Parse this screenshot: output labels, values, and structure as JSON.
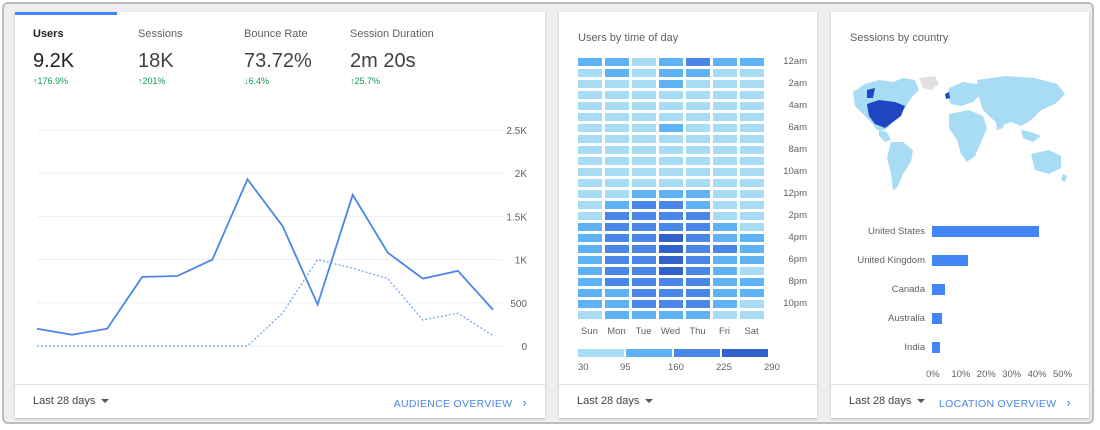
{
  "overview": {
    "tabs": [
      {
        "label": "Users",
        "value": "9.2K",
        "change": "176.9%",
        "direction": "up"
      },
      {
        "label": "Sessions",
        "value": "18K",
        "change": "201%",
        "direction": "up"
      },
      {
        "label": "Bounce Rate",
        "value": "73.72%",
        "change": "6.4%",
        "direction": "down"
      },
      {
        "label": "Session Duration",
        "value": "2m 20s",
        "change": "25.7%",
        "direction": "up"
      }
    ],
    "active_tab": "Users",
    "range_label": "Last 28 days",
    "link_label": "AUDIENCE OVERVIEW",
    "y_ticks": [
      "2.5K",
      "2K",
      "1.5K",
      "1K",
      "500",
      "0"
    ]
  },
  "time_of_day": {
    "title": "Users by time of day",
    "range_label": "Last 28 days",
    "hour_labels": [
      "12am",
      "2am",
      "4am",
      "6am",
      "8am",
      "10am",
      "12pm",
      "2pm",
      "4pm",
      "6pm",
      "8pm",
      "10pm"
    ],
    "day_labels": [
      "Sun",
      "Mon",
      "Tue",
      "Wed",
      "Thu",
      "Fri",
      "Sat"
    ],
    "scale_labels": [
      "30",
      "95",
      "160",
      "225",
      "290"
    ],
    "scale_colors": [
      "#a8dcf4",
      "#5fb2f3",
      "#4a86e8",
      "#3162c9"
    ]
  },
  "country": {
    "title": "Sessions by country",
    "range_label": "Last 28 days",
    "link_label": "LOCATION OVERVIEW",
    "countries": [
      {
        "name": "United States",
        "value": 42
      },
      {
        "name": "United Kingdom",
        "value": 14
      },
      {
        "name": "Canada",
        "value": 5
      },
      {
        "name": "Australia",
        "value": 4
      },
      {
        "name": "India",
        "value": 3
      }
    ],
    "x_ticks": [
      "0%",
      "10%",
      "20%",
      "30%",
      "40%",
      "50%"
    ]
  },
  "chart_data": [
    {
      "type": "line",
      "title": "",
      "xlabel": "",
      "ylabel": "",
      "ylim": [
        0,
        2500
      ],
      "y_ticks": [
        0,
        500,
        1000,
        1500,
        2000,
        2500
      ],
      "x": [
        1,
        2,
        3,
        4,
        5,
        6,
        7,
        8,
        9,
        10,
        11,
        12,
        13,
        14
      ],
      "series": [
        {
          "values": [
            200,
            130,
            200,
            800,
            810,
            1000,
            1930,
            1390,
            480,
            1750,
            1080,
            780,
            870,
            420
          ]
        },
        {
          "values": [
            0,
            0,
            0,
            0,
            0,
            0,
            0,
            380,
            1000,
            900,
            780,
            300,
            380,
            120
          ]
        }
      ],
      "grid": true
    },
    {
      "type": "heatmap",
      "title": "Users by time of day",
      "x_categories": [
        "Sun",
        "Mon",
        "Tue",
        "Wed",
        "Thu",
        "Fri",
        "Sat"
      ],
      "y_categories": [
        "12am",
        "1am",
        "2am",
        "3am",
        "4am",
        "5am",
        "6am",
        "7am",
        "8am",
        "9am",
        "10am",
        "11am",
        "12pm",
        "1pm",
        "2pm",
        "3pm",
        "4pm",
        "5pm",
        "6pm",
        "7pm",
        "8pm",
        "9pm",
        "10pm",
        "11pm"
      ],
      "values": [
        [
          140,
          120,
          70,
          150,
          160,
          120,
          100
        ],
        [
          60,
          150,
          60,
          150,
          110,
          80,
          60
        ],
        [
          50,
          80,
          60,
          110,
          90,
          60,
          50
        ],
        [
          40,
          60,
          40,
          80,
          60,
          60,
          40
        ],
        [
          40,
          50,
          40,
          60,
          50,
          50,
          40
        ],
        [
          40,
          50,
          40,
          60,
          40,
          40,
          40
        ],
        [
          40,
          60,
          40,
          120,
          60,
          50,
          40
        ],
        [
          40,
          60,
          40,
          60,
          60,
          50,
          40
        ],
        [
          40,
          60,
          50,
          60,
          60,
          60,
          40
        ],
        [
          40,
          60,
          50,
          60,
          60,
          60,
          40
        ],
        [
          40,
          60,
          60,
          60,
          60,
          60,
          40
        ],
        [
          40,
          60,
          60,
          60,
          60,
          60,
          40
        ],
        [
          40,
          60,
          130,
          130,
          130,
          60,
          40
        ],
        [
          60,
          140,
          160,
          170,
          150,
          60,
          50
        ],
        [
          80,
          160,
          170,
          200,
          160,
          80,
          70
        ],
        [
          100,
          170,
          180,
          220,
          170,
          100,
          80
        ],
        [
          120,
          180,
          200,
          250,
          190,
          150,
          120
        ],
        [
          130,
          190,
          210,
          280,
          200,
          160,
          130
        ],
        [
          110,
          180,
          200,
          250,
          190,
          150,
          100
        ],
        [
          100,
          170,
          190,
          230,
          180,
          120,
          80
        ],
        [
          120,
          160,
          180,
          220,
          170,
          130,
          110
        ],
        [
          110,
          150,
          170,
          210,
          160,
          140,
          100
        ],
        [
          100,
          150,
          170,
          200,
          160,
          130,
          90
        ],
        [
          70,
          100,
          140,
          140,
          120,
          90,
          60
        ]
      ],
      "scale": [
        30,
        95,
        160,
        225,
        290
      ]
    },
    {
      "type": "bar",
      "title": "Sessions by country",
      "categories": [
        "United States",
        "United Kingdom",
        "Canada",
        "Australia",
        "India"
      ],
      "values": [
        42,
        14,
        5,
        4,
        3
      ],
      "xlim": [
        0,
        50
      ],
      "x_ticks": [
        "0%",
        "10%",
        "20%",
        "30%",
        "40%",
        "50%"
      ]
    }
  ]
}
